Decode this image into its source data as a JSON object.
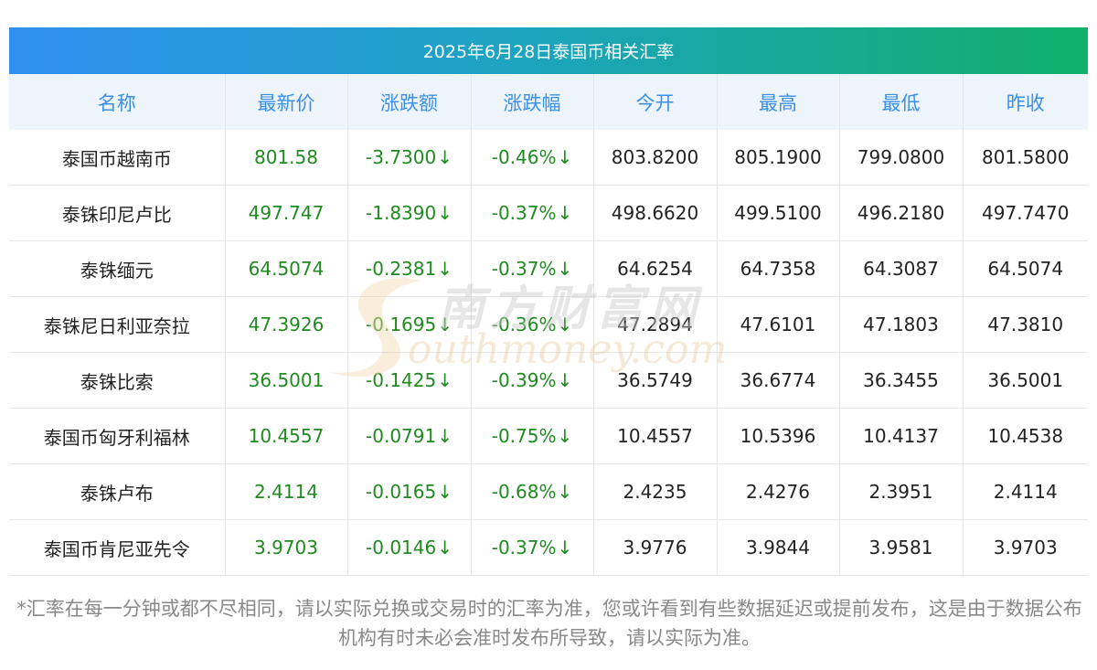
{
  "title": "2025年6月28日泰国币相关汇率",
  "headers": [
    "名称",
    "最新价",
    "涨跌额",
    "涨跌幅",
    "今开",
    "最高",
    "最低",
    "昨收"
  ],
  "rows": [
    {
      "name": "泰国币越南币",
      "latest": "801.58",
      "change": "-3.7300",
      "pct": "-0.46%",
      "open": "803.8200",
      "high": "805.1900",
      "low": "799.0800",
      "prev": "801.5800"
    },
    {
      "name": "泰铢印尼卢比",
      "latest": "497.747",
      "change": "-1.8390",
      "pct": "-0.37%",
      "open": "498.6620",
      "high": "499.5100",
      "low": "496.2180",
      "prev": "497.7470"
    },
    {
      "name": "泰铢缅元",
      "latest": "64.5074",
      "change": "-0.2381",
      "pct": "-0.37%",
      "open": "64.6254",
      "high": "64.7358",
      "low": "64.3087",
      "prev": "64.5074"
    },
    {
      "name": "泰铢尼日利亚奈拉",
      "latest": "47.3926",
      "change": "-0.1695",
      "pct": "-0.36%",
      "open": "47.2894",
      "high": "47.6101",
      "low": "47.1803",
      "prev": "47.3810"
    },
    {
      "name": "泰铢比索",
      "latest": "36.5001",
      "change": "-0.1425",
      "pct": "-0.39%",
      "open": "36.5749",
      "high": "36.6774",
      "low": "36.3455",
      "prev": "36.5001"
    },
    {
      "name": "泰国币匈牙利福林",
      "latest": "10.4557",
      "change": "-0.0791",
      "pct": "-0.75%",
      "open": "10.4557",
      "high": "10.5396",
      "low": "10.4137",
      "prev": "10.4538"
    },
    {
      "name": "泰铢卢布",
      "latest": "2.4114",
      "change": "-0.0165",
      "pct": "-0.68%",
      "open": "2.4235",
      "high": "2.4276",
      "low": "2.3951",
      "prev": "2.4114"
    },
    {
      "name": "泰国币肯尼亚先令",
      "latest": "3.9703",
      "change": "-0.0146",
      "pct": "-0.37%",
      "open": "3.9776",
      "high": "3.9844",
      "low": "3.9581",
      "prev": "3.9703"
    }
  ],
  "down_arrow": "↓",
  "footnote": "*汇率在每一分钟或都不尽相同，请以实际兑换或交易时的汇率为准，您或许看到有些数据延迟或提前发布，这是由于数据公布机构有时未必会准时发布所导致，请以实际为准。",
  "watermark": {
    "cn": "南方财富网",
    "en": "outhmoney.com",
    "mark": "S"
  }
}
